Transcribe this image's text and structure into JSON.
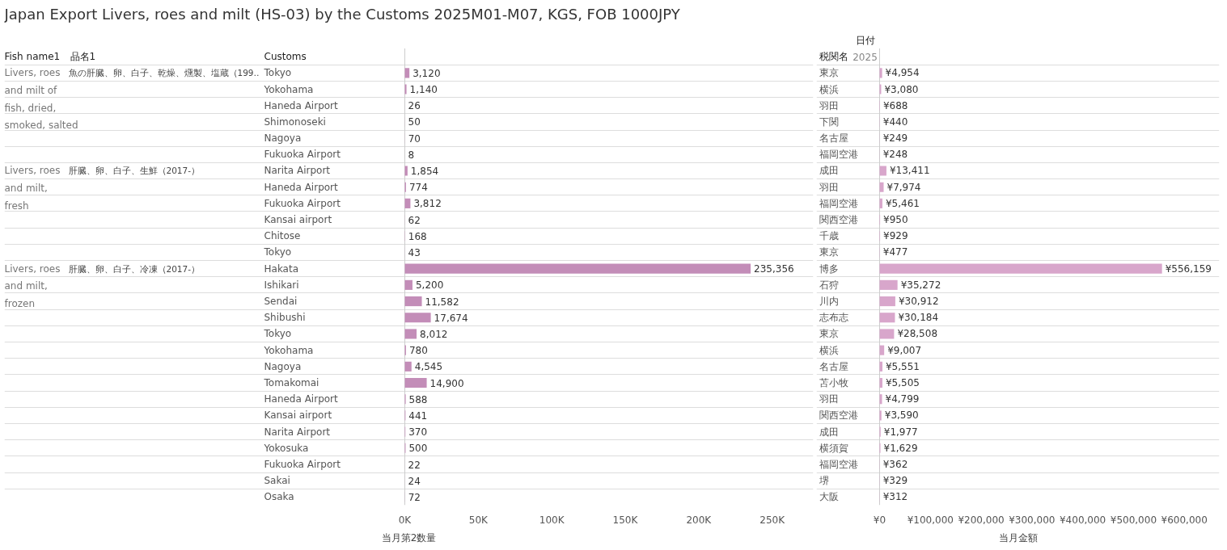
{
  "chart_data": [
    {
      "type": "bar",
      "orientation": "horizontal",
      "title": "Japan Export Livers, roes and milt (HS-03) by the Customs 2025M01-M07, KGS, FOB 1000JPY",
      "ylabel": "Customs",
      "xlabel": "当月第2数量",
      "categories": [
        "Tokyo",
        "Yokohama",
        "Haneda Airport",
        "Shimonoseki",
        "Nagoya",
        "Fukuoka Airport",
        "Narita Airport",
        "Haneda Airport",
        "Fukuoka Airport",
        "Kansai airport",
        "Chitose",
        "Tokyo",
        "Hakata",
        "Ishikari",
        "Sendai",
        "Shibushi",
        "Tokyo",
        "Yokohama",
        "Nagoya",
        "Tomakomai",
        "Haneda Airport",
        "Kansai airport",
        "Narita Airport",
        "Yokosuka",
        "Fukuoka Airport",
        "Sakai",
        "Osaka"
      ],
      "values": [
        3120,
        1140,
        26,
        50,
        70,
        8,
        1854,
        774,
        3812,
        62,
        168,
        43,
        235356,
        5200,
        11582,
        17674,
        8012,
        780,
        4545,
        14900,
        588,
        441,
        370,
        500,
        22,
        24,
        72
      ],
      "value_labels": [
        "3,120",
        "1,140",
        "26",
        "50",
        "70",
        "8",
        "1,854",
        "774",
        "3,812",
        "62",
        "168",
        "43",
        "235,356",
        "5,200",
        "11,582",
        "17,674",
        "8,012",
        "780",
        "4,545",
        "14,900",
        "588",
        "441",
        "370",
        "500",
        "22",
        "24",
        "72"
      ],
      "color": "#c38db8",
      "xlim": [
        0,
        278000
      ],
      "xticks": [
        {
          "value": 0,
          "label": "0K"
        },
        {
          "value": 50000,
          "label": "50K"
        },
        {
          "value": 100000,
          "label": "100K"
        },
        {
          "value": 150000,
          "label": "150K"
        },
        {
          "value": 200000,
          "label": "200K"
        },
        {
          "value": 250000,
          "label": "250K"
        }
      ],
      "grid": "y",
      "annotations": [
        "Fish name1",
        "品名1",
        "Livers, roes and milt of fish, dried, smoked, salted",
        "魚の肝臓、卵、白子、乾燥、燻製、塩蔵（199‥",
        "Livers, roes and milt, fresh",
        "肝臓、卵、白子、生鮮（2017-）",
        "Livers, roes and milt, frozen",
        "肝臓、卵、白子、冷凍（2017-）"
      ]
    },
    {
      "type": "bar",
      "orientation": "horizontal",
      "ylabel": "税関名",
      "xlabel": "当月金額",
      "categories": [
        "東京",
        "横浜",
        "羽田",
        "下関",
        "名古屋",
        "福岡空港",
        "成田",
        "羽田",
        "福岡空港",
        "関西空港",
        "千歳",
        "東京",
        "博多",
        "石狩",
        "川内",
        "志布志",
        "東京",
        "横浜",
        "名古屋",
        "苫小牧",
        "羽田",
        "関西空港",
        "成田",
        "横須賀",
        "福岡空港",
        "堺",
        "大阪"
      ],
      "values": [
        4954,
        3080,
        688,
        440,
        249,
        248,
        13411,
        7974,
        5461,
        950,
        929,
        477,
        556159,
        35272,
        30912,
        30184,
        28508,
        9007,
        5551,
        5505,
        4799,
        3590,
        1977,
        1629,
        362,
        329,
        312
      ],
      "value_labels": [
        "¥4,954",
        "¥3,080",
        "¥688",
        "¥440",
        "¥249",
        "¥248",
        "¥13,411",
        "¥7,974",
        "¥5,461",
        "¥950",
        "¥929",
        "¥477",
        "¥556,159",
        "¥35,272",
        "¥30,912",
        "¥30,184",
        "¥28,508",
        "¥9,007",
        "¥5,551",
        "¥5,505",
        "¥4,799",
        "¥3,590",
        "¥1,977",
        "¥1,629",
        "¥362",
        "¥329",
        "¥312"
      ],
      "color": "#d8a6cb",
      "xlim": [
        0,
        669000
      ],
      "xticks": [
        {
          "value": 0,
          "label": "¥0"
        },
        {
          "value": 100000,
          "label": "¥100,000"
        },
        {
          "value": 200000,
          "label": "¥200,000"
        },
        {
          "value": 300000,
          "label": "¥300,000"
        },
        {
          "value": 400000,
          "label": "¥400,000"
        },
        {
          "value": 500000,
          "label": "¥500,000"
        },
        {
          "value": 600000,
          "label": "¥600,000"
        }
      ],
      "grid": "y",
      "annotations": [
        "日付",
        "2025"
      ]
    }
  ]
}
